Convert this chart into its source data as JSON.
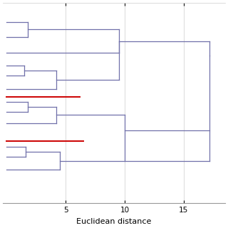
{
  "xlabel": "Euclidean distance",
  "background_color": "#ffffff",
  "line_color": "#7070aa",
  "red_line_color": "#cc0000",
  "figsize": [
    3.2,
    3.2
  ],
  "dpi": 100,
  "xlim": [
    -0.3,
    18.5
  ],
  "ylim": [
    0,
    16
  ],
  "xticks": [
    5,
    10,
    15
  ],
  "xlabel_fontsize": 8,
  "tick_fontsize": 7.5,
  "lw": 0.9,
  "red_lw": 1.4,
  "top_cluster": {
    "leaf1_y": 14.5,
    "leaf2_y": 13.3,
    "merge1_x": 1.8,
    "leaf3_y": 12.0,
    "merge2_x": 9.5,
    "leaf4_y": 11.0,
    "leaf5_y": 10.2,
    "merge3_x": 1.5,
    "leaf6_y": 9.1,
    "merge4_x": 4.2,
    "mid1_merge_x": 9.5,
    "top_join_x": 17.2,
    "top_join_y": 11.8
  },
  "red_line_1": {
    "y": 8.5,
    "x0": 0.0,
    "x1": 6.2
  },
  "mid_cluster": {
    "leaf1_y": 8.1,
    "leaf2_y": 7.3,
    "merge1_x": 1.8,
    "leaf3_y": 6.4,
    "merge2_x": 4.2,
    "mid_out_x": 10.0,
    "mid_join_x": 17.2
  },
  "red_line_2": {
    "y": 5.0,
    "x0": 0.0,
    "x1": 6.5
  },
  "bot_cluster": {
    "leaf1_y": 4.5,
    "leaf2_y": 3.7,
    "merge1_x": 1.6,
    "leaf3_y": 2.7,
    "merge2_x": 4.5,
    "bot_out_x": 17.2
  },
  "bot_join_y": 3.5,
  "mid_bot_join_x": 10.0,
  "mid_bot_join_y": 5.8
}
